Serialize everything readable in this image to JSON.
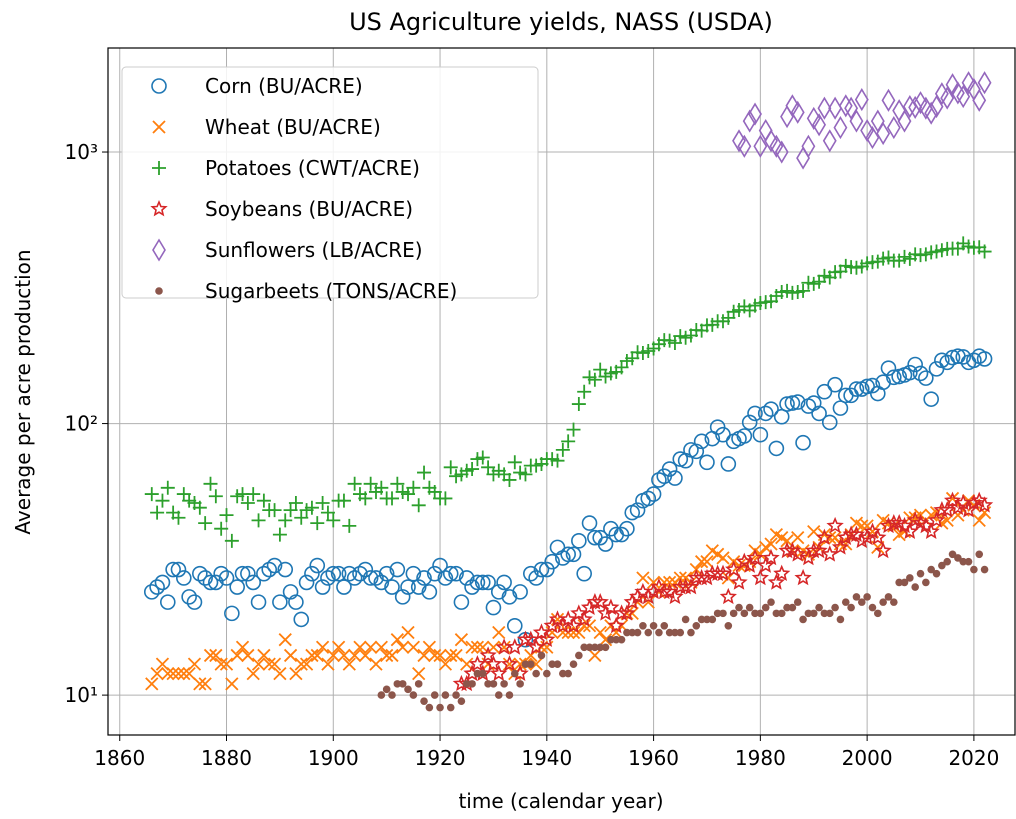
{
  "chart_data": {
    "type": "scatter",
    "title": "US Agriculture yields, NASS (USDA)",
    "xlabel": "time (calendar year)",
    "ylabel": "Average per acre production",
    "yscale": "log",
    "grid": true,
    "legend": "upper left",
    "xlim": [
      1857.8,
      2027.7
    ],
    "ylim": [
      7.13,
      2416
    ],
    "xticks": [
      1860,
      1880,
      1900,
      1920,
      1940,
      1960,
      1980,
      2000,
      2020
    ],
    "yticks": [
      {
        "value": 10,
        "label": "10¹"
      },
      {
        "value": 100,
        "label": "10²"
      },
      {
        "value": 1000,
        "label": "10³"
      }
    ],
    "x": [
      1866,
      1867,
      1868,
      1869,
      1870,
      1871,
      1872,
      1873,
      1874,
      1875,
      1876,
      1877,
      1878,
      1879,
      1880,
      1881,
      1882,
      1883,
      1884,
      1885,
      1886,
      1887,
      1888,
      1889,
      1890,
      1891,
      1892,
      1893,
      1894,
      1895,
      1896,
      1897,
      1898,
      1899,
      1900,
      1901,
      1902,
      1903,
      1904,
      1905,
      1906,
      1907,
      1908,
      1909,
      1910,
      1911,
      1912,
      1913,
      1914,
      1915,
      1916,
      1917,
      1918,
      1919,
      1920,
      1921,
      1922,
      1923,
      1924,
      1925,
      1926,
      1927,
      1928,
      1929,
      1930,
      1931,
      1932,
      1933,
      1934,
      1935,
      1936,
      1937,
      1938,
      1939,
      1940,
      1941,
      1942,
      1943,
      1944,
      1945,
      1946,
      1947,
      1948,
      1949,
      1950,
      1951,
      1952,
      1953,
      1954,
      1955,
      1956,
      1957,
      1958,
      1959,
      1960,
      1961,
      1962,
      1963,
      1964,
      1965,
      1966,
      1967,
      1968,
      1969,
      1970,
      1971,
      1972,
      1973,
      1974,
      1975,
      1976,
      1977,
      1978,
      1979,
      1980,
      1981,
      1982,
      1983,
      1984,
      1985,
      1986,
      1987,
      1988,
      1989,
      1990,
      1991,
      1992,
      1993,
      1994,
      1995,
      1996,
      1997,
      1998,
      1999,
      2000,
      2001,
      2002,
      2003,
      2004,
      2005,
      2006,
      2007,
      2008,
      2009,
      2010,
      2011,
      2012,
      2013,
      2014,
      2015,
      2016,
      2017,
      2018,
      2019,
      2020,
      2021,
      2022
    ],
    "series": [
      {
        "name": "Corn (BU/ACRE)",
        "color": "#1f77b4",
        "marker": "o",
        "values": [
          24,
          25,
          26,
          22,
          29,
          29,
          27,
          23,
          22,
          28,
          27,
          26,
          26,
          28,
          27,
          20,
          25,
          28,
          28,
          26,
          22,
          28,
          29,
          30,
          22,
          29,
          24,
          22,
          19,
          26,
          28,
          30,
          25,
          27,
          28,
          28,
          25,
          28,
          27,
          28,
          29,
          27,
          27,
          26,
          28,
          25,
          29,
          23,
          25,
          28,
          25,
          27,
          24,
          28,
          30,
          27,
          28,
          28,
          22,
          27,
          25,
          26,
          26,
          26,
          21,
          24,
          26,
          23,
          18,
          24,
          16,
          28,
          27,
          29,
          29,
          31,
          35,
          32,
          33,
          33,
          37,
          28,
          43,
          38,
          38,
          36,
          41,
          39,
          39,
          41,
          47,
          48,
          52,
          53,
          55,
          62,
          64,
          68,
          63,
          74,
          73,
          80,
          79,
          86,
          72,
          88,
          97,
          91,
          71,
          86,
          88,
          90,
          101,
          109,
          91,
          109,
          113,
          81,
          106,
          118,
          119,
          120,
          85,
          116,
          119,
          109,
          131,
          101,
          139,
          114,
          127,
          127,
          134,
          134,
          137,
          138,
          129,
          142,
          160,
          148,
          149,
          151,
          154,
          165,
          153,
          147,
          123,
          159,
          171,
          168,
          175,
          177,
          176,
          168,
          171,
          177,
          173
        ]
      },
      {
        "name": "Wheat (BU/ACRE)",
        "color": "#ff7f0e",
        "marker": "x",
        "values": [
          11,
          12,
          13,
          12,
          12,
          12,
          12,
          12,
          13,
          11,
          11,
          14,
          14,
          13,
          13,
          11,
          14,
          15,
          14,
          12,
          13,
          14,
          13,
          13,
          12,
          16,
          14,
          12,
          13,
          13,
          14,
          14,
          15,
          13,
          14,
          15,
          14,
          13,
          14,
          15,
          14,
          15,
          13,
          15,
          14,
          14,
          16,
          15,
          17,
          15,
          12,
          14,
          15,
          14,
          14,
          13,
          14,
          14,
          16,
          13,
          15,
          15,
          15,
          13,
          15,
          17,
          15,
          13,
          12,
          13,
          13,
          14,
          13,
          15,
          15,
          17,
          19,
          17,
          17,
          17,
          17,
          18,
          18,
          14,
          17,
          16,
          18,
          17,
          18,
          20,
          20,
          22,
          27,
          22,
          26,
          24,
          26,
          26,
          26,
          27,
          27,
          26,
          29,
          31,
          31,
          34,
          33,
          32,
          27,
          31,
          30,
          30,
          31,
          34,
          33,
          35,
          36,
          39,
          38,
          37,
          34,
          38,
          34,
          33,
          40,
          35,
          39,
          38,
          38,
          36,
          36,
          39,
          43,
          42,
          42,
          40,
          35,
          44,
          43,
          42,
          39,
          40,
          45,
          45,
          46,
          44,
          46,
          47,
          43,
          44,
          53,
          46,
          48,
          52,
          50,
          44,
          47
        ]
      },
      {
        "name": "Potatoes (CWT/ACRE)",
        "color": "#2ca02c",
        "marker": "+",
        "values": [
          55,
          47,
          52,
          58,
          47,
          45,
          55,
          52,
          51,
          49,
          43,
          60,
          54,
          41,
          46,
          37,
          54,
          55,
          51,
          55,
          44,
          52,
          48,
          48,
          39,
          44,
          48,
          51,
          45,
          48,
          49,
          43,
          51,
          47,
          44,
          52,
          52,
          42,
          60,
          55,
          53,
          60,
          56,
          58,
          53,
          53,
          60,
          56,
          55,
          58,
          50,
          66,
          58,
          56,
          53,
          53,
          69,
          64,
          65,
          67,
          68,
          74,
          75,
          69,
          65,
          67,
          65,
          62,
          72,
          66,
          65,
          70,
          70,
          71,
          74,
          74,
          73,
          80,
          86,
          95,
          118,
          131,
          148,
          145,
          158,
          149,
          153,
          155,
          161,
          170,
          174,
          183,
          182,
          185,
          189,
          196,
          203,
          202,
          198,
          210,
          207,
          211,
          221,
          220,
          230,
          231,
          238,
          238,
          245,
          258,
          262,
          270,
          261,
          272,
          278,
          280,
          282,
          295,
          305,
          308,
          303,
          305,
          308,
          330,
          327,
          333,
          350,
          345,
          361,
          363,
          381,
          377,
          375,
          379,
          389,
          393,
          395,
          405,
          409,
          398,
          398,
          411,
          404,
          420,
          417,
          420,
          427,
          430,
          435,
          440,
          441,
          441,
          461,
          449,
          444,
          446,
          430
        ]
      },
      {
        "name": "Soybeans (BU/ACRE)",
        "color": "#d62728",
        "marker": "*",
        "values": [
          null,
          null,
          null,
          null,
          null,
          null,
          null,
          null,
          null,
          null,
          null,
          null,
          null,
          null,
          null,
          null,
          null,
          null,
          null,
          null,
          null,
          null,
          null,
          null,
          null,
          null,
          null,
          null,
          null,
          null,
          null,
          null,
          null,
          null,
          null,
          null,
          null,
          null,
          null,
          null,
          null,
          null,
          null,
          null,
          null,
          null,
          null,
          null,
          null,
          null,
          null,
          null,
          null,
          null,
          null,
          null,
          null,
          null,
          11,
          11,
          12,
          13,
          12,
          14,
          13,
          12,
          15,
          13,
          15,
          12,
          16,
          16,
          15,
          17,
          16,
          18,
          19,
          18,
          19,
          18,
          20,
          19,
          21,
          22,
          22,
          20,
          21,
          18,
          20,
          20,
          22,
          23,
          24,
          23,
          24,
          25,
          24,
          24,
          23,
          25,
          25,
          25,
          27,
          27,
          27,
          28,
          28,
          28,
          23,
          29,
          26,
          31,
          30,
          32,
          27,
          30,
          32,
          26,
          28,
          34,
          34,
          33,
          27,
          32,
          34,
          34,
          38,
          33,
          42,
          35,
          38,
          39,
          39,
          37,
          38,
          40,
          38,
          34,
          42,
          43,
          43,
          42,
          40,
          44,
          43,
          42,
          40,
          44,
          48,
          48,
          52,
          49,
          51,
          48,
          51,
          52,
          50
        ]
      },
      {
        "name": "Sunflowers (LB/ACRE)",
        "color": "#9467bd",
        "marker": "d",
        "values": [
          null,
          null,
          null,
          null,
          null,
          null,
          null,
          null,
          null,
          null,
          null,
          null,
          null,
          null,
          null,
          null,
          null,
          null,
          null,
          null,
          null,
          null,
          null,
          null,
          null,
          null,
          null,
          null,
          null,
          null,
          null,
          null,
          null,
          null,
          null,
          null,
          null,
          null,
          null,
          null,
          null,
          null,
          null,
          null,
          null,
          null,
          null,
          null,
          null,
          null,
          null,
          null,
          null,
          null,
          null,
          null,
          null,
          null,
          null,
          null,
          null,
          null,
          null,
          null,
          null,
          null,
          null,
          null,
          null,
          null,
          null,
          null,
          null,
          null,
          null,
          null,
          null,
          null,
          null,
          null,
          null,
          null,
          null,
          null,
          null,
          null,
          null,
          null,
          null,
          null,
          null,
          null,
          null,
          null,
          null,
          null,
          null,
          null,
          null,
          null,
          null,
          null,
          null,
          null,
          null,
          null,
          null,
          null,
          null,
          null,
          1100,
          1050,
          1300,
          1380,
          1050,
          1200,
          1100,
          1050,
          1000,
          1350,
          1480,
          1400,
          950,
          1050,
          1330,
          1260,
          1450,
          1100,
          1450,
          1230,
          1480,
          1450,
          1300,
          1560,
          1200,
          1130,
          1300,
          1170,
          1550,
          1230,
          1420,
          1300,
          1470,
          1460,
          1520,
          1450,
          1390,
          1470,
          1640,
          1580,
          1770,
          1650,
          1600,
          1800,
          1700,
          1550,
          1800
        ]
      },
      {
        "name": "Sugarbeets (TONS/ACRE)",
        "color": "#8c564b",
        "marker": ".",
        "values": [
          null,
          null,
          null,
          null,
          null,
          null,
          null,
          null,
          null,
          null,
          null,
          null,
          null,
          null,
          null,
          null,
          null,
          null,
          null,
          null,
          null,
          null,
          null,
          null,
          null,
          null,
          null,
          null,
          null,
          null,
          null,
          null,
          null,
          null,
          null,
          null,
          null,
          null,
          null,
          null,
          null,
          null,
          null,
          10,
          10.5,
          10,
          11,
          11,
          10.5,
          10,
          11,
          9.5,
          9,
          10,
          9,
          10,
          9,
          10,
          9.5,
          11,
          11,
          12,
          12,
          11,
          11,
          10,
          11,
          10,
          12,
          11,
          13,
          13,
          12,
          14,
          12,
          13,
          13,
          12,
          12,
          13,
          14,
          15,
          15,
          15,
          15,
          15,
          16,
          16,
          16,
          17,
          17,
          17,
          18,
          17,
          18,
          17,
          18,
          17,
          17,
          17,
          19,
          17,
          18,
          19,
          19,
          19,
          20,
          20,
          18,
          20,
          21,
          20,
          21,
          20,
          20,
          21,
          22,
          20,
          20,
          21,
          21,
          22,
          19,
          20,
          20,
          21,
          20,
          20,
          21,
          19,
          22,
          21,
          23,
          22,
          23,
          21,
          20,
          22,
          23,
          22,
          26,
          26,
          27,
          25,
          28,
          26,
          29,
          28,
          30,
          31,
          33,
          32,
          31,
          31,
          29,
          33,
          29
        ]
      }
    ]
  }
}
